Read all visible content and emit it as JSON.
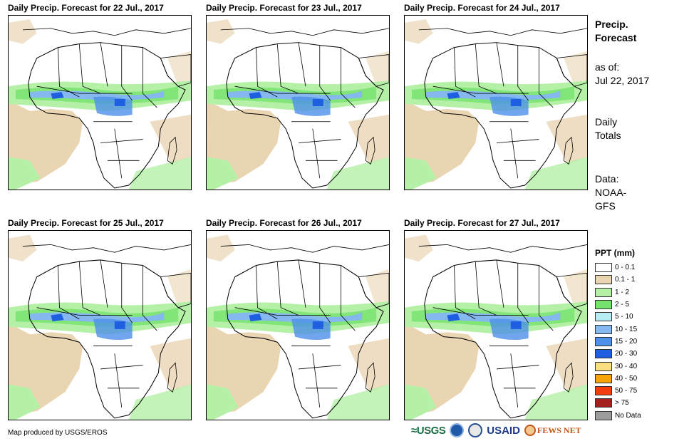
{
  "panels": [
    {
      "title": "Daily Precip. Forecast for 22 Jul., 2017"
    },
    {
      "title": "Daily Precip. Forecast for 23 Jul., 2017"
    },
    {
      "title": "Daily Precip. Forecast for 24 Jul., 2017"
    },
    {
      "title": "Daily Precip. Forecast for 25 Jul., 2017"
    },
    {
      "title": "Daily Precip. Forecast for 26 Jul., 2017"
    },
    {
      "title": "Daily Precip. Forecast for 27 Jul., 2017"
    }
  ],
  "side": {
    "title_line1": "Precip.",
    "title_line2": "Forecast",
    "asof_line1": "as of:",
    "asof_line2": "Jul 22, 2017",
    "totals_line1": "Daily",
    "totals_line2": "Totals",
    "data_line1": "Data:",
    "data_line2": "NOAA-",
    "data_line3": "GFS"
  },
  "legend": {
    "title": "PPT (mm)",
    "items": [
      {
        "label": "0 - 0.1",
        "color": "#ffffff"
      },
      {
        "label": "0.1 - 1",
        "color": "#ead5b3"
      },
      {
        "label": "1 - 2",
        "color": "#b4f0a6"
      },
      {
        "label": "2 - 5",
        "color": "#74e26c"
      },
      {
        "label": "5 - 10",
        "color": "#b7ecf4"
      },
      {
        "label": "10 - 15",
        "color": "#84b8ee"
      },
      {
        "label": "15 - 20",
        "color": "#4e90ea"
      },
      {
        "label": "20 - 30",
        "color": "#1e5ee0"
      },
      {
        "label": "30 - 40",
        "color": "#f8e080"
      },
      {
        "label": "40 - 50",
        "color": "#f5a40a"
      },
      {
        "label": "50 - 75",
        "color": "#f03e0e"
      },
      {
        "label": "> 75",
        "color": "#a3201c"
      },
      {
        "label": "No Data",
        "color": "#9c9c9c"
      }
    ]
  },
  "footer": {
    "credit": "Map produced by USGS/EROS",
    "logo_usgs": "≈USGS",
    "logo_usaid": "USAID",
    "logo_fews": "FEWS NET"
  }
}
